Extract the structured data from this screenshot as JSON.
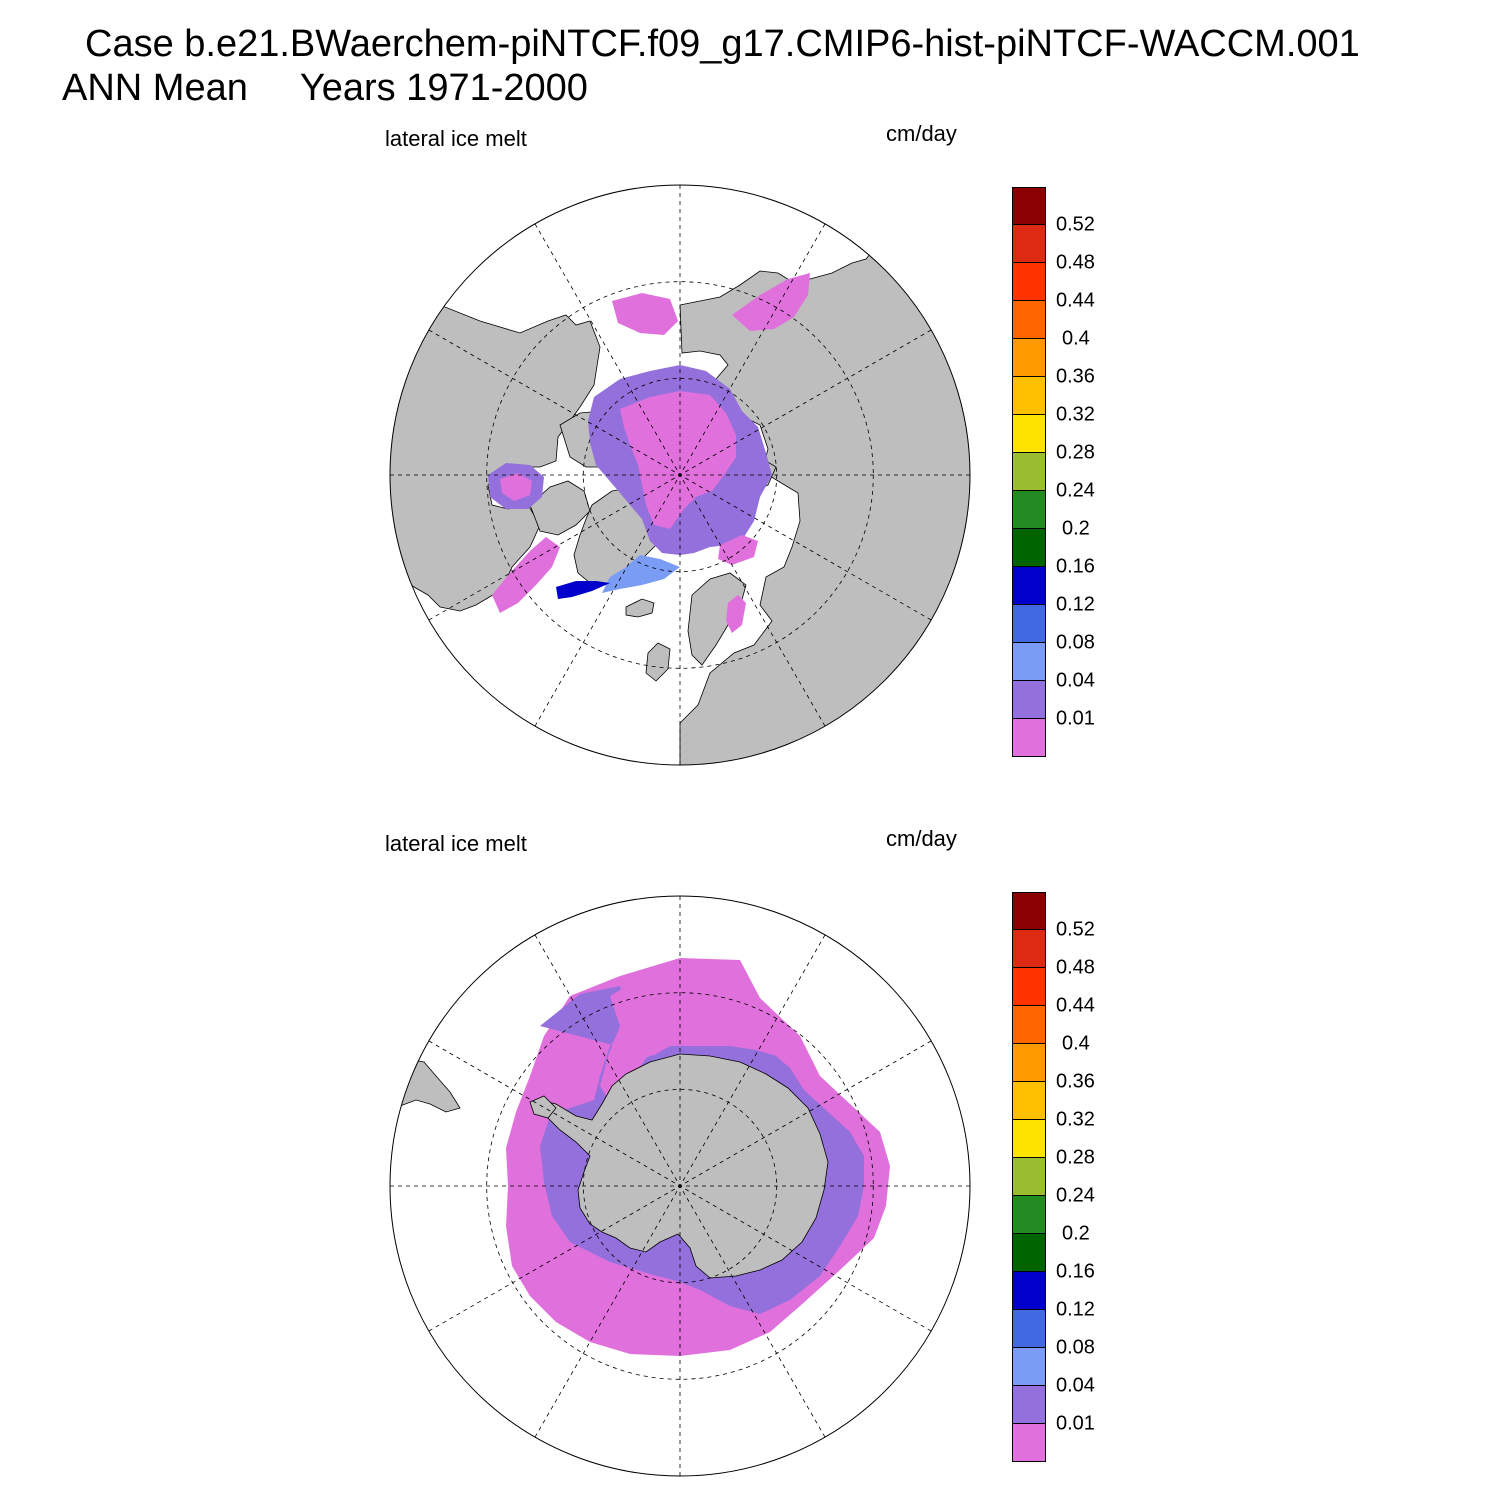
{
  "header": {
    "case_line": "Case b.e21.BWaerchem-piNTCF.f09_g17.CMIP6-hist-piNTCF-WACCM.001",
    "mean_label": "ANN Mean",
    "years_label": "Years 1971-2000"
  },
  "colors": {
    "ocean": "#ffffff",
    "land": "#bebebe",
    "coast": "#000000",
    "grid": "#000000"
  },
  "colorbar": {
    "colors": [
      "#8b0000",
      "#dd2a12",
      "#ff3300",
      "#ff6600",
      "#ff9900",
      "#ffc000",
      "#ffe300",
      "#9bbd31",
      "#228b22",
      "#006400",
      "#0000cd",
      "#4169e1",
      "#7b9cf5",
      "#9370db",
      "#e070dc"
    ],
    "labels": [
      "0.52",
      "0.48",
      "0.44",
      "0.4",
      "0.36",
      "0.32",
      "0.28",
      "0.24",
      "0.2",
      "0.16",
      "0.12",
      "0.08",
      "0.04",
      "0.01"
    ]
  },
  "panels": [
    {
      "id": "north",
      "hemisphere": "Northern Hemisphere",
      "title": "lateral ice melt",
      "units": "cm/day"
    },
    {
      "id": "south",
      "hemisphere": "Southern Hemisphere",
      "title": "lateral ice melt",
      "units": "cm/day"
    }
  ]
}
